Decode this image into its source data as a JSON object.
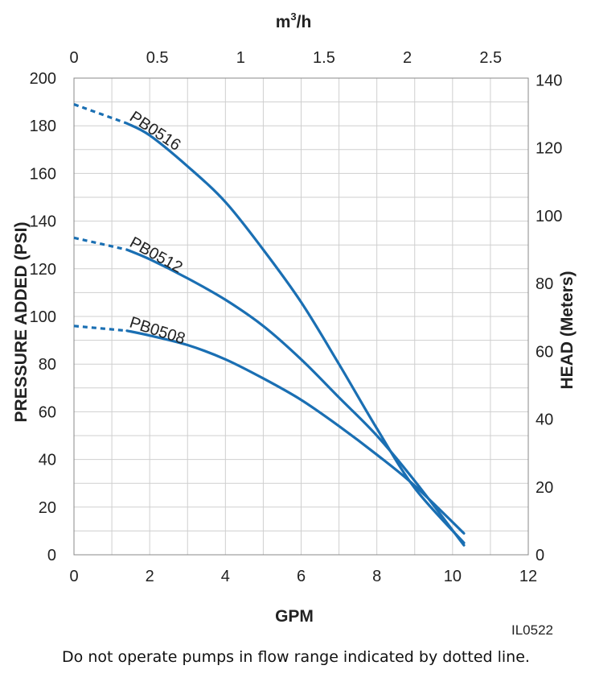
{
  "chart_data": {
    "type": "line",
    "x_bottom": {
      "label": "GPM",
      "range": [
        0,
        12
      ],
      "ticks": [
        0,
        2,
        4,
        6,
        8,
        10,
        12
      ]
    },
    "x_top": {
      "label_base": "m",
      "label_sup": "3",
      "label_rest": "/h",
      "range": [
        0,
        2.7255
      ],
      "ticks": [
        "0",
        "0.5",
        "1",
        "1.5",
        "2",
        "2.5"
      ]
    },
    "y_left": {
      "label": "PRESSURE ADDED (PSI)",
      "range": [
        0,
        200
      ],
      "ticks": [
        0,
        20,
        40,
        60,
        80,
        100,
        120,
        140,
        160,
        180,
        200
      ]
    },
    "y_right": {
      "label": "HEAD (Meters)",
      "range": [
        0,
        140.6
      ],
      "ticks": [
        0,
        20,
        40,
        60,
        80,
        100,
        120,
        140
      ]
    },
    "grid": true,
    "line_color": "#1a6fb3",
    "series": [
      {
        "name": "PB0516",
        "dotted_until": 1.4,
        "points": [
          [
            0,
            189
          ],
          [
            1.4,
            181
          ],
          [
            2,
            176
          ],
          [
            3,
            163
          ],
          [
            4,
            148
          ],
          [
            5,
            128
          ],
          [
            6,
            106
          ],
          [
            7,
            80
          ],
          [
            8,
            53
          ],
          [
            9,
            28
          ],
          [
            10.3,
            5
          ]
        ]
      },
      {
        "name": "PB0512",
        "dotted_until": 1.4,
        "points": [
          [
            0,
            133
          ],
          [
            1.4,
            128
          ],
          [
            2,
            124
          ],
          [
            3,
            116
          ],
          [
            4,
            107
          ],
          [
            5,
            96
          ],
          [
            6,
            82
          ],
          [
            7,
            66
          ],
          [
            8,
            50
          ],
          [
            9,
            31
          ],
          [
            10.3,
            4
          ]
        ]
      },
      {
        "name": "PB0508",
        "dotted_until": 1.4,
        "points": [
          [
            0,
            96
          ],
          [
            1.4,
            94
          ],
          [
            2,
            92
          ],
          [
            3,
            88
          ],
          [
            4,
            82
          ],
          [
            5,
            74
          ],
          [
            6,
            65
          ],
          [
            7,
            54
          ],
          [
            8,
            42
          ],
          [
            9,
            29
          ],
          [
            10.3,
            9
          ]
        ]
      }
    ]
  },
  "code": "IL0522",
  "note": "Do not operate pumps in flow range indicated by dotted line."
}
